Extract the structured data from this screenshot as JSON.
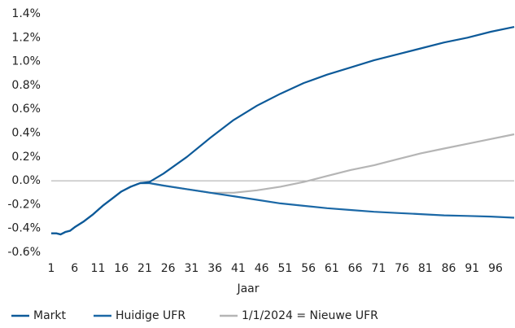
{
  "chart_data": {
    "type": "line",
    "x_label": "Jaar",
    "x": [
      1,
      2,
      3,
      4,
      5,
      6,
      8,
      10,
      12,
      14,
      16,
      18,
      20,
      22,
      25,
      30,
      35,
      40,
      45,
      50,
      55,
      60,
      65,
      70,
      75,
      80,
      85,
      90,
      95,
      100
    ],
    "xlim": [
      1,
      100
    ],
    "xticks": [
      1,
      6,
      11,
      16,
      21,
      26,
      31,
      36,
      41,
      46,
      51,
      56,
      61,
      66,
      71,
      76,
      81,
      86,
      91,
      96
    ],
    "ylim": [
      -0.6,
      1.4
    ],
    "yticks": [
      {
        "value": -0.6,
        "label": "-0.6%"
      },
      {
        "value": -0.4,
        "label": "-0.4%"
      },
      {
        "value": -0.2,
        "label": "-0.2%"
      },
      {
        "value": 0,
        "label": "0.0%"
      },
      {
        "value": 0.2,
        "label": "0.2%"
      },
      {
        "value": 0.4,
        "label": "0.4%"
      },
      {
        "value": 0.6,
        "label": "0.6%"
      },
      {
        "value": 0.8,
        "label": "0.8%"
      },
      {
        "value": 1.0,
        "label": "1.0%"
      },
      {
        "value": 1.2,
        "label": "1.2%"
      },
      {
        "value": 1.4,
        "label": "1.4%"
      }
    ],
    "series": [
      {
        "name": "Markt",
        "color": "#0d5a99",
        "values": [
          -0.44,
          -0.44,
          -0.45,
          -0.43,
          -0.42,
          -0.39,
          -0.34,
          -0.28,
          -0.21,
          -0.15,
          -0.09,
          -0.05,
          -0.02,
          -0.01,
          0.06,
          0.2,
          0.36,
          0.51,
          0.63,
          0.73,
          0.82,
          0.89,
          0.95,
          1.01,
          1.06,
          1.11,
          1.16,
          1.2,
          1.25,
          1.29
        ]
      },
      {
        "name": "Huidige UFR",
        "color": "#1b68a6",
        "values": [
          -0.44,
          -0.44,
          -0.45,
          -0.43,
          -0.42,
          -0.39,
          -0.34,
          -0.28,
          -0.21,
          -0.15,
          -0.09,
          -0.05,
          -0.02,
          -0.02,
          -0.04,
          -0.07,
          -0.1,
          -0.13,
          -0.16,
          -0.19,
          -0.21,
          -0.23,
          -0.245,
          -0.26,
          -0.27,
          -0.28,
          -0.29,
          -0.295,
          -0.3,
          -0.31
        ]
      },
      {
        "name": "1/1/2024 = Nieuwe UFR",
        "color": "#b5b5b5",
        "values": [
          -0.44,
          -0.44,
          -0.45,
          -0.43,
          -0.42,
          -0.39,
          -0.34,
          -0.28,
          -0.21,
          -0.15,
          -0.09,
          -0.05,
          -0.02,
          -0.02,
          -0.04,
          -0.07,
          -0.1,
          -0.1,
          -0.08,
          -0.05,
          -0.01,
          0.04,
          0.09,
          0.13,
          0.18,
          0.23,
          0.27,
          0.31,
          0.35,
          0.39
        ]
      }
    ]
  }
}
